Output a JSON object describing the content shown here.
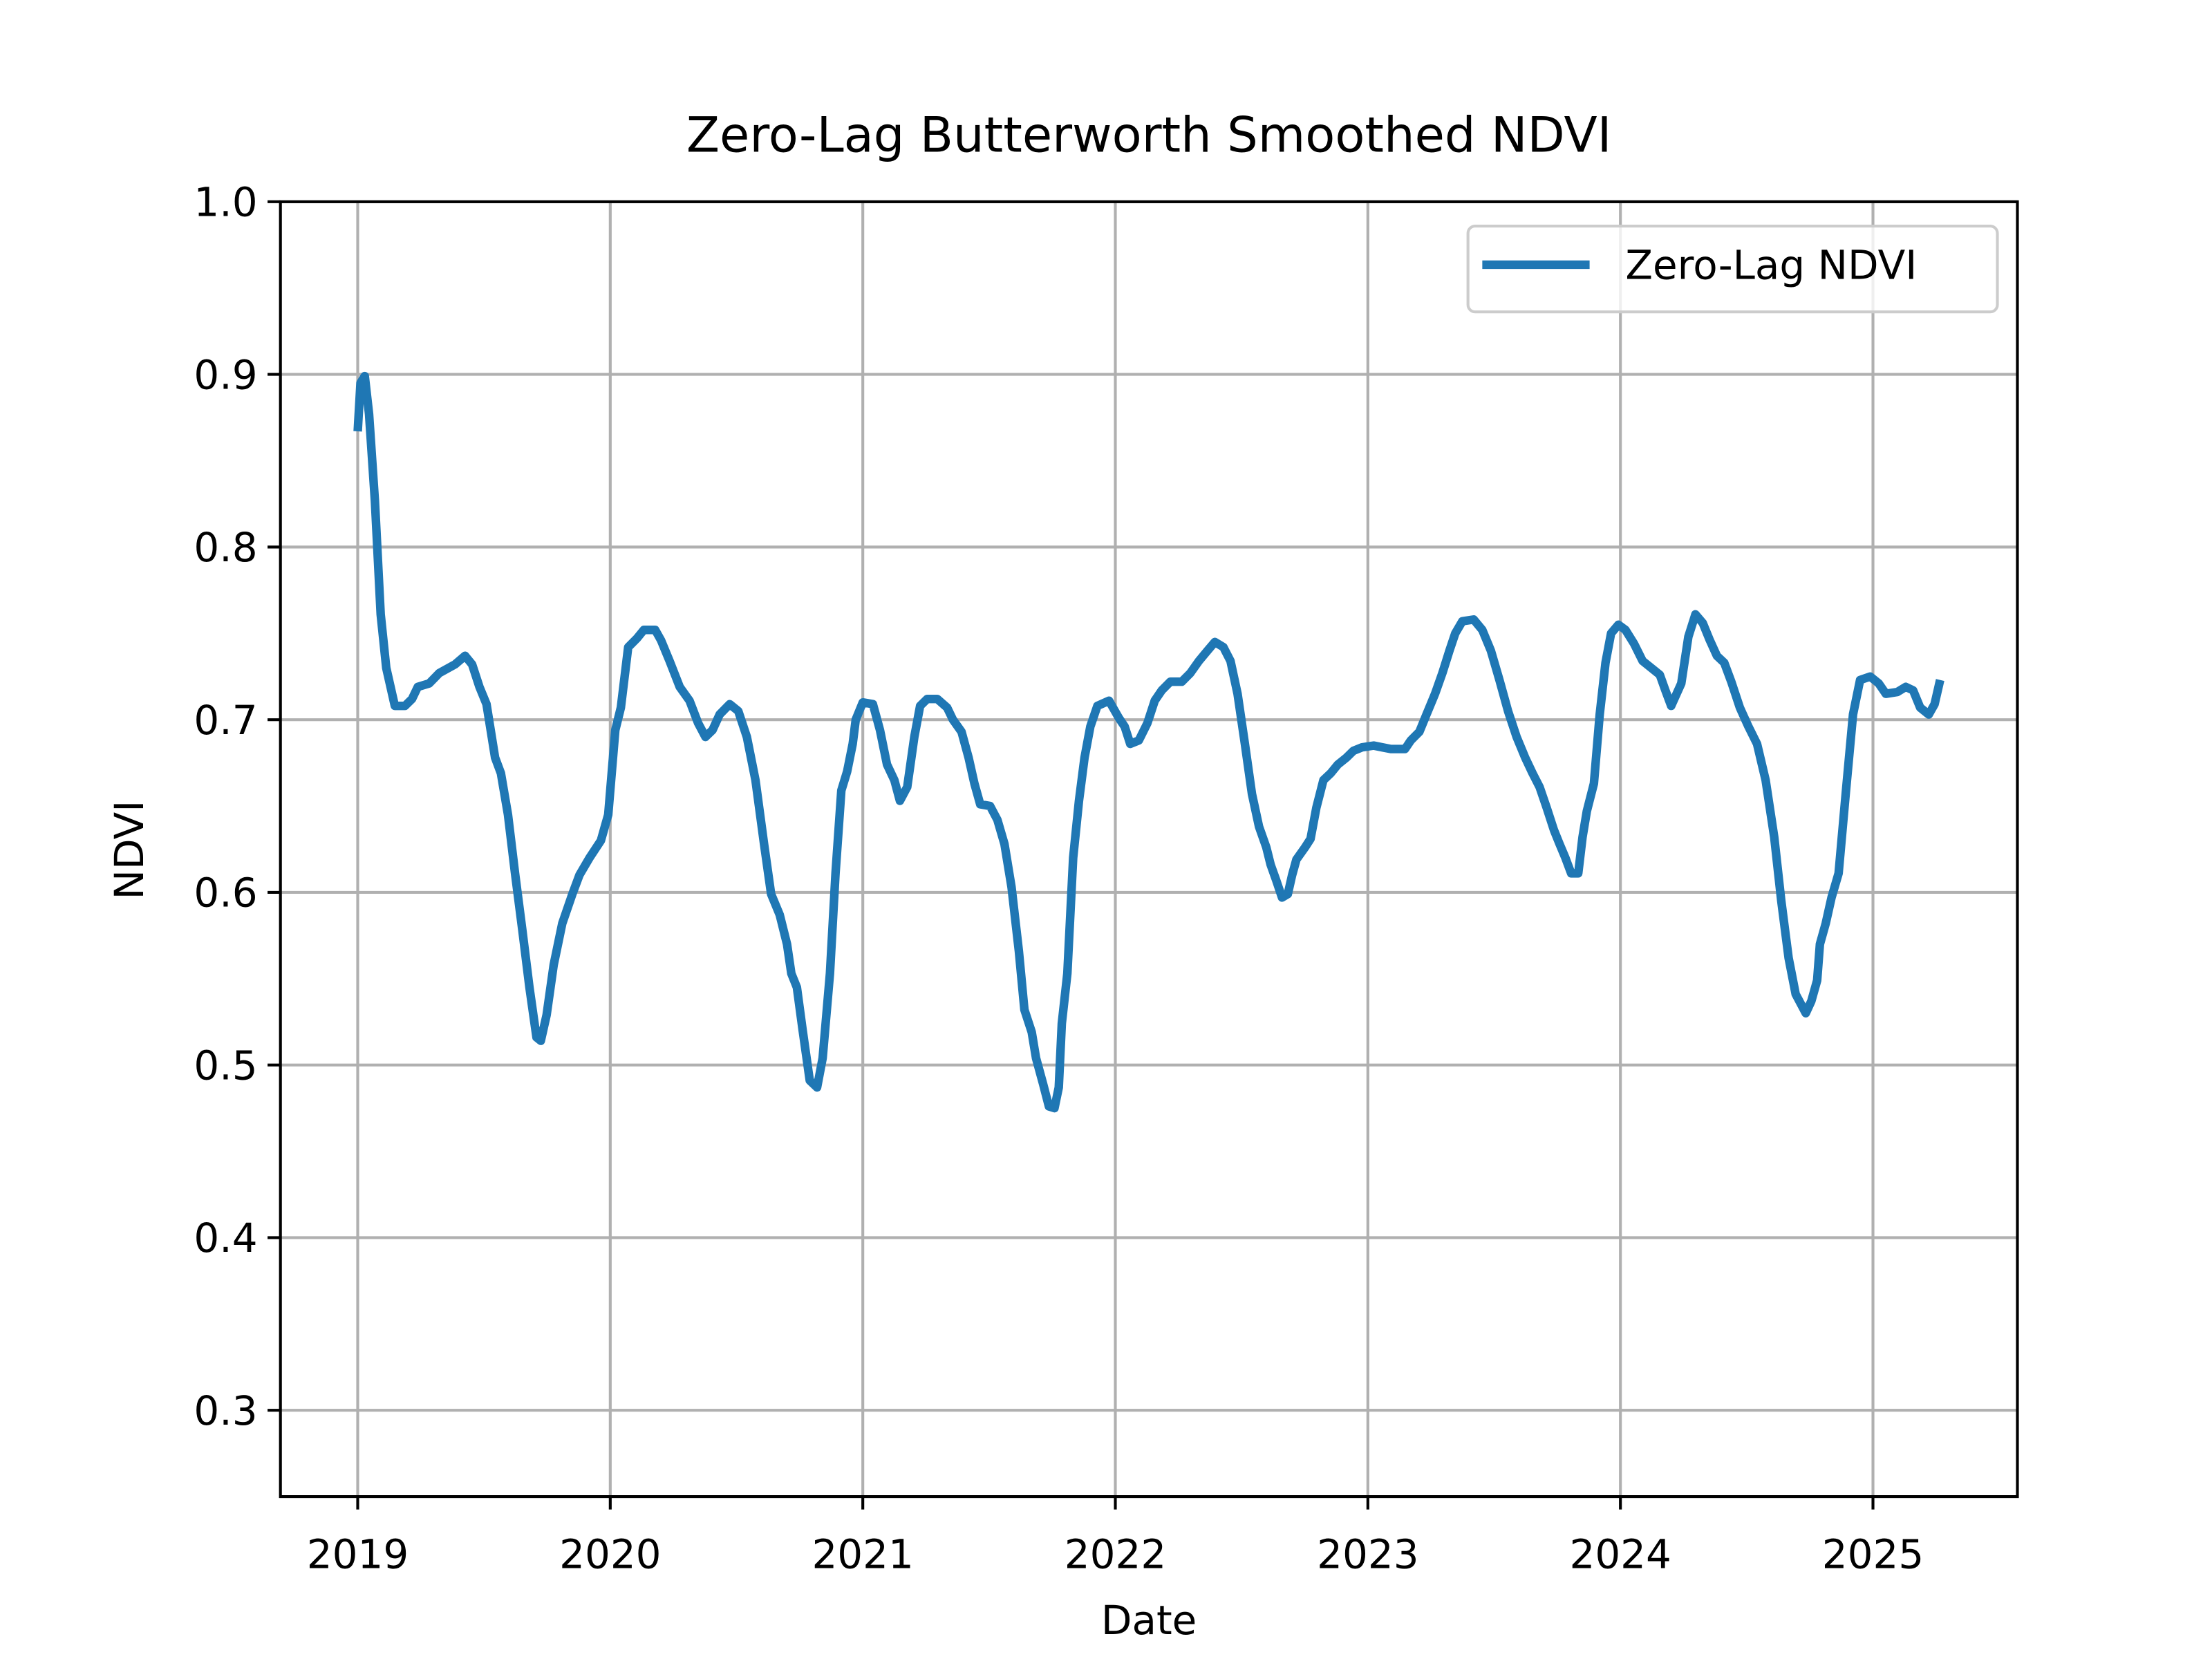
{
  "chart_data": {
    "type": "line",
    "title": "Zero-Lag Butterworth Smoothed NDVI",
    "xlabel": "Date",
    "ylabel": "NDVI",
    "x": [
      2019.0,
      2019.011,
      2019.028,
      2019.045,
      2019.068,
      2019.091,
      2019.113,
      2019.147,
      2019.187,
      2019.215,
      2019.238,
      2019.283,
      2019.323,
      2019.385,
      2019.425,
      2019.453,
      2019.482,
      2019.51,
      2019.544,
      2019.567,
      2019.595,
      2019.623,
      2019.652,
      2019.68,
      2019.708,
      2019.725,
      2019.748,
      2019.776,
      2019.81,
      2019.85,
      2019.878,
      2019.918,
      2019.963,
      2019.992,
      2020.02,
      2020.042,
      2020.071,
      2020.105,
      2020.133,
      2020.178,
      2020.201,
      2020.235,
      2020.275,
      2020.314,
      2020.348,
      2020.377,
      2020.405,
      2020.433,
      2020.473,
      2020.507,
      2020.541,
      2020.575,
      2020.609,
      2020.637,
      2020.671,
      2020.7,
      2020.717,
      2020.739,
      2020.762,
      2020.79,
      2020.819,
      2020.841,
      2020.87,
      2020.892,
      2020.915,
      2020.938,
      2020.96,
      2020.972,
      2021.0,
      2021.04,
      2021.068,
      2021.096,
      2021.125,
      2021.147,
      2021.176,
      2021.204,
      2021.227,
      2021.255,
      2021.295,
      2021.334,
      2021.357,
      2021.391,
      2021.419,
      2021.442,
      2021.465,
      2021.504,
      2021.533,
      2021.561,
      2021.589,
      2021.618,
      2021.64,
      2021.669,
      2021.686,
      2021.714,
      2021.737,
      2021.759,
      2021.776,
      2021.788,
      2021.81,
      2021.833,
      2021.856,
      2021.878,
      2021.901,
      2021.929,
      2021.975,
      2022.014,
      2022.037,
      2022.059,
      2022.093,
      2022.127,
      2022.156,
      2022.184,
      2022.218,
      2022.263,
      2022.297,
      2022.331,
      2022.365,
      2022.394,
      2022.428,
      2022.456,
      2022.484,
      2022.513,
      2022.541,
      2022.569,
      2022.598,
      2022.615,
      2022.637,
      2022.66,
      2022.683,
      2022.7,
      2022.717,
      2022.751,
      2022.773,
      2022.796,
      2022.824,
      2022.853,
      2022.881,
      2022.915,
      2022.943,
      2022.977,
      2023.023,
      2023.057,
      2023.091,
      2023.147,
      2023.17,
      2023.204,
      2023.232,
      2023.266,
      2023.295,
      2023.323,
      2023.346,
      2023.374,
      2023.419,
      2023.453,
      2023.487,
      2023.521,
      2023.555,
      2023.589,
      2023.623,
      2023.652,
      2023.68,
      2023.708,
      2023.737,
      2023.759,
      2023.782,
      2023.805,
      2023.833,
      2023.85,
      2023.867,
      2023.895,
      2023.918,
      2023.941,
      2023.963,
      2023.992,
      2024.02,
      2024.054,
      2024.088,
      2024.122,
      2024.156,
      2024.178,
      2024.201,
      2024.241,
      2024.269,
      2024.297,
      2024.326,
      2024.354,
      2024.382,
      2024.411,
      2024.439,
      2024.473,
      2024.507,
      2024.541,
      2024.575,
      2024.609,
      2024.637,
      2024.666,
      2024.694,
      2024.734,
      2024.756,
      2024.779,
      2024.79,
      2024.813,
      2024.836,
      2024.864,
      2024.892,
      2024.921,
      2024.949,
      2024.989,
      2025.023,
      2025.051,
      2025.096,
      2025.13,
      2025.159,
      2025.187,
      2025.221,
      2025.244,
      2025.266
    ],
    "series": [
      {
        "name": "Zero-Lag NDVI",
        "color": "#1f77b4",
        "values": [
          0.867,
          0.895,
          0.899,
          0.877,
          0.827,
          0.761,
          0.73,
          0.708,
          0.708,
          0.712,
          0.719,
          0.721,
          0.727,
          0.732,
          0.737,
          0.732,
          0.719,
          0.709,
          0.678,
          0.669,
          0.645,
          0.611,
          0.578,
          0.545,
          0.516,
          0.514,
          0.529,
          0.558,
          0.582,
          0.599,
          0.61,
          0.62,
          0.63,
          0.645,
          0.694,
          0.707,
          0.742,
          0.747,
          0.752,
          0.752,
          0.746,
          0.734,
          0.719,
          0.711,
          0.698,
          0.69,
          0.694,
          0.703,
          0.709,
          0.705,
          0.69,
          0.665,
          0.628,
          0.599,
          0.587,
          0.57,
          0.553,
          0.545,
          0.52,
          0.491,
          0.487,
          0.504,
          0.553,
          0.611,
          0.659,
          0.67,
          0.686,
          0.7,
          0.71,
          0.709,
          0.694,
          0.674,
          0.665,
          0.653,
          0.661,
          0.69,
          0.708,
          0.712,
          0.712,
          0.707,
          0.7,
          0.693,
          0.678,
          0.663,
          0.651,
          0.65,
          0.642,
          0.628,
          0.603,
          0.566,
          0.532,
          0.519,
          0.504,
          0.489,
          0.476,
          0.475,
          0.487,
          0.524,
          0.553,
          0.62,
          0.653,
          0.678,
          0.696,
          0.708,
          0.711,
          0.701,
          0.696,
          0.686,
          0.688,
          0.698,
          0.711,
          0.717,
          0.722,
          0.722,
          0.727,
          0.734,
          0.74,
          0.745,
          0.742,
          0.734,
          0.715,
          0.686,
          0.657,
          0.638,
          0.626,
          0.616,
          0.607,
          0.597,
          0.599,
          0.61,
          0.619,
          0.626,
          0.631,
          0.649,
          0.665,
          0.669,
          0.674,
          0.678,
          0.682,
          0.684,
          0.685,
          0.684,
          0.683,
          0.683,
          0.688,
          0.693,
          0.703,
          0.715,
          0.727,
          0.74,
          0.75,
          0.757,
          0.758,
          0.752,
          0.74,
          0.723,
          0.705,
          0.69,
          0.678,
          0.669,
          0.661,
          0.649,
          0.636,
          0.628,
          0.62,
          0.611,
          0.611,
          0.632,
          0.647,
          0.663,
          0.703,
          0.733,
          0.75,
          0.755,
          0.752,
          0.744,
          0.734,
          0.73,
          0.726,
          0.717,
          0.708,
          0.721,
          0.748,
          0.761,
          0.756,
          0.746,
          0.737,
          0.733,
          0.722,
          0.707,
          0.696,
          0.686,
          0.665,
          0.632,
          0.595,
          0.562,
          0.541,
          0.53,
          0.537,
          0.549,
          0.57,
          0.582,
          0.597,
          0.611,
          0.657,
          0.703,
          0.723,
          0.725,
          0.721,
          0.715,
          0.716,
          0.719,
          0.717,
          0.707,
          0.703,
          0.709,
          0.723
        ]
      }
    ],
    "xlim": [
      2018.694,
      2025.572
    ],
    "ylim": [
      0.25,
      1.0
    ],
    "xticks": [
      2019,
      2020,
      2021,
      2022,
      2023,
      2024,
      2025
    ],
    "yticks": [
      0.3,
      0.4,
      0.5,
      0.6,
      0.7,
      0.8,
      0.9,
      {
        "value": 1.0,
        "label": "1.0"
      }
    ],
    "grid": true,
    "legend": "upper right"
  }
}
